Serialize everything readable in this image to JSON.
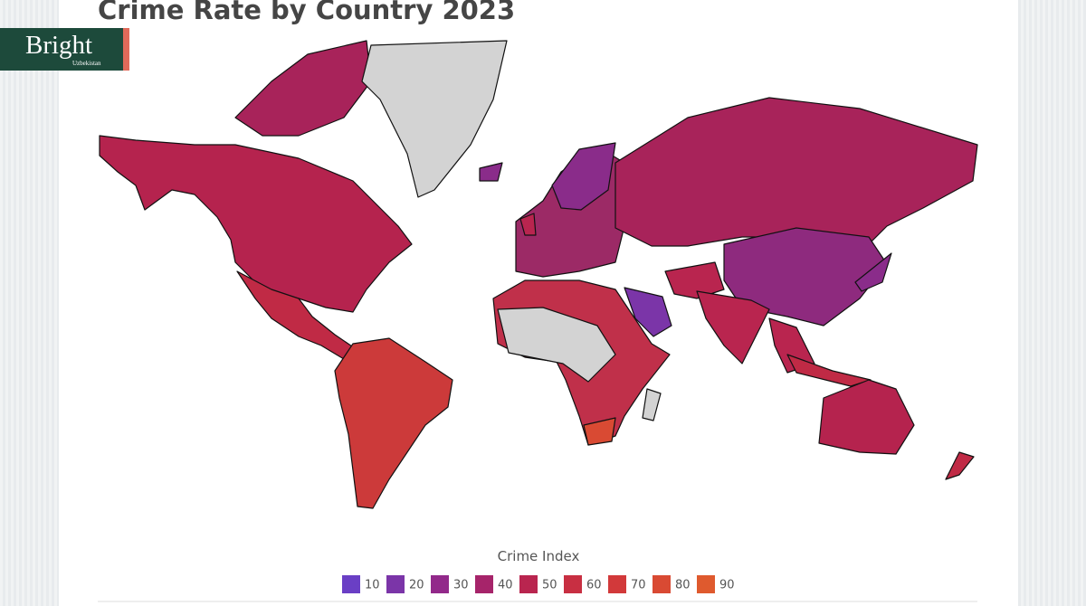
{
  "logo": {
    "name": "Bright",
    "subtitle": "Uzbekistan"
  },
  "header": {
    "title": "Crime Rate by Country 2023"
  },
  "legend": {
    "title": "Crime Index",
    "items": [
      {
        "value": 10,
        "color": "#6a3fc5"
      },
      {
        "value": 20,
        "color": "#7b35a8"
      },
      {
        "value": 30,
        "color": "#92298a"
      },
      {
        "value": 40,
        "color": "#a6246a"
      },
      {
        "value": 50,
        "color": "#b9254f"
      },
      {
        "value": 60,
        "color": "#c82f42"
      },
      {
        "value": 70,
        "color": "#d2393a"
      },
      {
        "value": 80,
        "color": "#d94a33"
      },
      {
        "value": 90,
        "color": "#df5a2e"
      }
    ]
  }
}
